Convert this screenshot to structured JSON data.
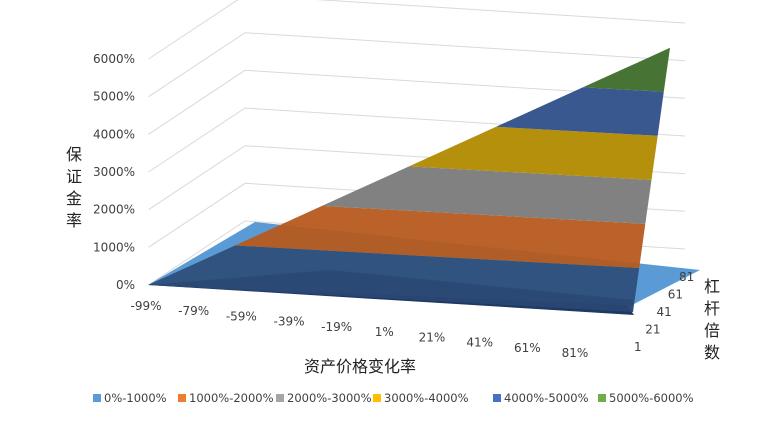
{
  "chart_data": {
    "type": "surface",
    "title": "",
    "xlabel": "资产价格变化率",
    "ylabel": "保证金率",
    "depth_label": "杠杆倍数",
    "x_ticks": [
      "-99%",
      "-79%",
      "-59%",
      "-39%",
      "-19%",
      "1%",
      "21%",
      "41%",
      "61%",
      "81%"
    ],
    "z_ticks": [
      "0%",
      "1000%",
      "2000%",
      "3000%",
      "4000%",
      "5000%",
      "6000%"
    ],
    "depth_ticks": [
      "1",
      "21",
      "41",
      "61",
      "81"
    ],
    "zlim": [
      0,
      6000
    ],
    "grid": true,
    "legend_position": "bottom",
    "bands": [
      {
        "label": "0%-1000%",
        "color": "#5b9bd5"
      },
      {
        "label": "1000%-2000%",
        "color": "#ed7d31"
      },
      {
        "label": "2000%-3000%",
        "color": "#a5a5a5"
      },
      {
        "label": "3000%-4000%",
        "color": "#ffc000"
      },
      {
        "label": "4000%-5000%",
        "color": "#4472c4"
      },
      {
        "label": "5000%-6000%",
        "color": "#70ad47"
      }
    ],
    "surface_corner_values": {
      "x_min_leverage_min": 0,
      "x_min_leverage_max": 0,
      "x_max_leverage_min": 0,
      "x_max_leverage_max": 5900
    }
  }
}
